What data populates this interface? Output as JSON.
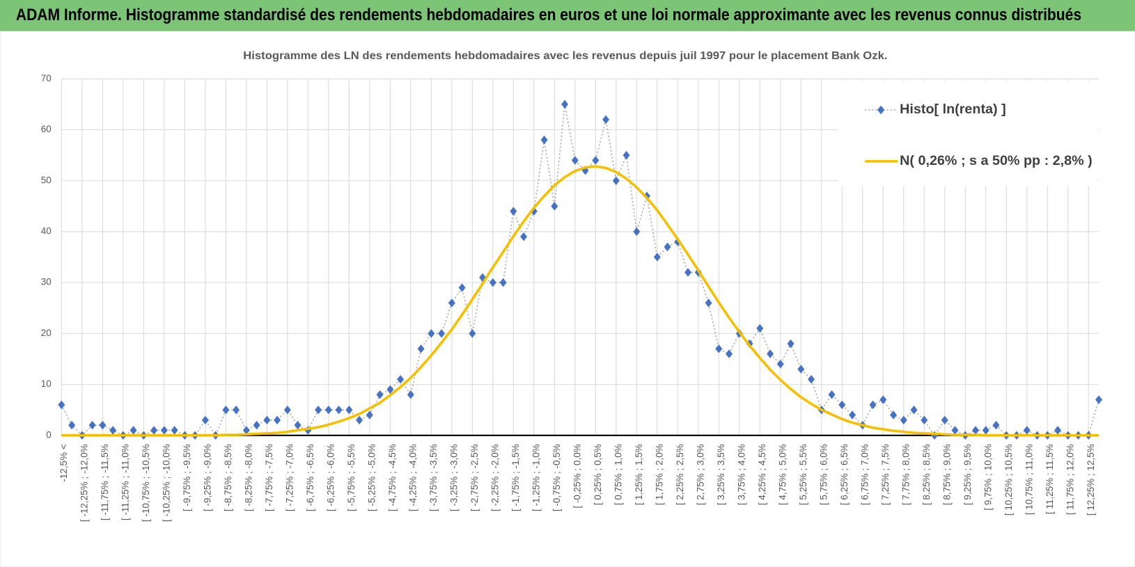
{
  "header": {
    "title": "ADAM Informe. Histogramme standardisé des rendements hebdomadaires en euros et une loi normale approximante avec les revenus connus distribués"
  },
  "chart_data": {
    "type": "line",
    "title": "Histogramme des LN des rendements hebdomadaires avec les revenus depuis juil 1997 pour le placement Bank Ozk.",
    "categories": [
      "-12,5% <",
      null,
      "[ -12,25% ; -12,0%",
      null,
      "[ -11,75% ; -11,5%",
      null,
      "[ -11,25% ; -11,0%",
      null,
      "[ -10,75% ; -10,5%",
      null,
      "[ -10,25% ; -10,0%",
      null,
      "[ -9,75% ; -9,5%",
      null,
      "[ -9,25% ; -9,0%",
      null,
      "[ -8,75% ; -8,5%",
      null,
      "[ -8,25% ; -8,0%",
      null,
      "[ -7,75% ; -7,5%",
      null,
      "[ -7,25% ; -7,0%",
      null,
      "[ -6,75% ; -6,5%",
      null,
      "[ -6,25% ; -6,0%",
      null,
      "[ -5,75% ; -5,5%",
      null,
      "[ -5,25% ; -5,0%",
      null,
      "[ -4,75% ; -4,5%",
      null,
      "[ -4,25% ; -4,0%",
      null,
      "[ -3,75% ; -3,5%",
      null,
      "[ -3,25% ; -3,0%",
      null,
      "[ -2,75% ; -2,5%",
      null,
      "[ -2,25% ; -2,0%",
      null,
      "[ -1,75% ; -1,5%",
      null,
      "[ -1,25% ; -1,0%",
      null,
      "[ -0,75% ; -0,5%",
      null,
      "[ -0,25% ; 0,0%",
      null,
      "[ 0,25% ; 0,5%",
      null,
      "[ 0,75% ; 1,0%",
      null,
      "[ 1,25% ; 1,5%",
      null,
      "[ 1,75% ; 2,0%",
      null,
      "[ 2,25% ; 2,5%",
      null,
      "[ 2,75% ; 3,0%",
      null,
      "[ 3,25% ; 3,5%",
      null,
      "[ 3,75% ; 4,0%",
      null,
      "[ 4,25% ; 4,5%",
      null,
      "[ 4,75% ; 5,0%",
      null,
      "[ 5,25% ; 5,5%",
      null,
      "[ 5,75% ; 6,0%",
      null,
      "[ 6,25% ; 6,5%",
      null,
      "[ 6,75% ; 7,0%",
      null,
      "[ 7,25% ; 7,5%",
      null,
      "[ 7,75% ; 8,0%",
      null,
      "[ 8,25% ; 8,5%",
      null,
      "[ 8,75% ; 9,0%",
      null,
      "[ 9,25% ; 9,5%",
      null,
      "[ 9,75% ; 10,0%",
      null,
      "[ 10,25% ; 10,5%",
      null,
      "[ 10,75% ; 11,0%",
      null,
      "[ 11,25% ; 11,5%",
      null,
      "[ 11,75% ; 12,0%",
      null,
      "[ 12,25% ; 12,5%",
      null
    ],
    "series": [
      {
        "name": "Histo[ ln(renta) ]",
        "color": "#4472c4",
        "values": [
          6,
          2,
          0,
          2,
          2,
          1,
          0,
          1,
          0,
          1,
          1,
          1,
          0,
          0,
          3,
          0,
          5,
          5,
          1,
          2,
          3,
          3,
          5,
          2,
          1,
          5,
          5,
          5,
          5,
          3,
          4,
          8,
          9,
          11,
          8,
          17,
          20,
          20,
          26,
          29,
          20,
          31,
          30,
          30,
          44,
          39,
          44,
          58,
          45,
          65,
          54,
          52,
          54,
          62,
          50,
          55,
          40,
          47,
          35,
          37,
          38,
          32,
          32,
          26,
          17,
          16,
          20,
          18,
          21,
          16,
          14,
          18,
          13,
          11,
          5,
          8,
          6,
          4,
          2,
          6,
          7,
          4,
          3,
          5,
          3,
          0,
          3,
          1,
          0,
          1,
          1,
          2,
          0,
          0,
          1,
          0,
          0,
          1,
          0,
          0,
          0,
          7
        ]
      },
      {
        "name": "N( 0,26% ; s a 50% pp : 2,8% )",
        "color": "#f5c000",
        "values": [
          0,
          0,
          0,
          0,
          0,
          0,
          0,
          0,
          0,
          0,
          0,
          0,
          0,
          0,
          0,
          0,
          0.1,
          0.1,
          0.2,
          0.3,
          0.4,
          0.5,
          0.7,
          1.0,
          1.3,
          1.6,
          2.1,
          2.7,
          3.4,
          4.2,
          5.3,
          6.4,
          7.9,
          9.5,
          11.3,
          13.4,
          15.7,
          18.2,
          20.8,
          23.7,
          26.7,
          29.8,
          33.0,
          36.0,
          39.1,
          42.0,
          44.7,
          47.0,
          49.1,
          50.7,
          51.9,
          52.6,
          52.8,
          52.5,
          51.7,
          50.4,
          48.7,
          46.6,
          44.2,
          41.4,
          38.5,
          35.5,
          32.4,
          29.2,
          26.1,
          23.1,
          20.3,
          17.6,
          15.2,
          12.9,
          10.9,
          9.1,
          7.5,
          6.2,
          5.0,
          4.1,
          3.2,
          2.5,
          2.0,
          1.5,
          1.2,
          0.9,
          0.7,
          0.5,
          0.4,
          0.3,
          0.2,
          0.1,
          0.1,
          0.1,
          0,
          0,
          0,
          0,
          0,
          0,
          0,
          0,
          0,
          0,
          0,
          0
        ]
      }
    ],
    "ylim": [
      0,
      70
    ],
    "yticks": [
      0,
      10,
      20,
      30,
      40,
      50,
      60,
      70
    ],
    "grid": true,
    "legend": "top-right"
  }
}
